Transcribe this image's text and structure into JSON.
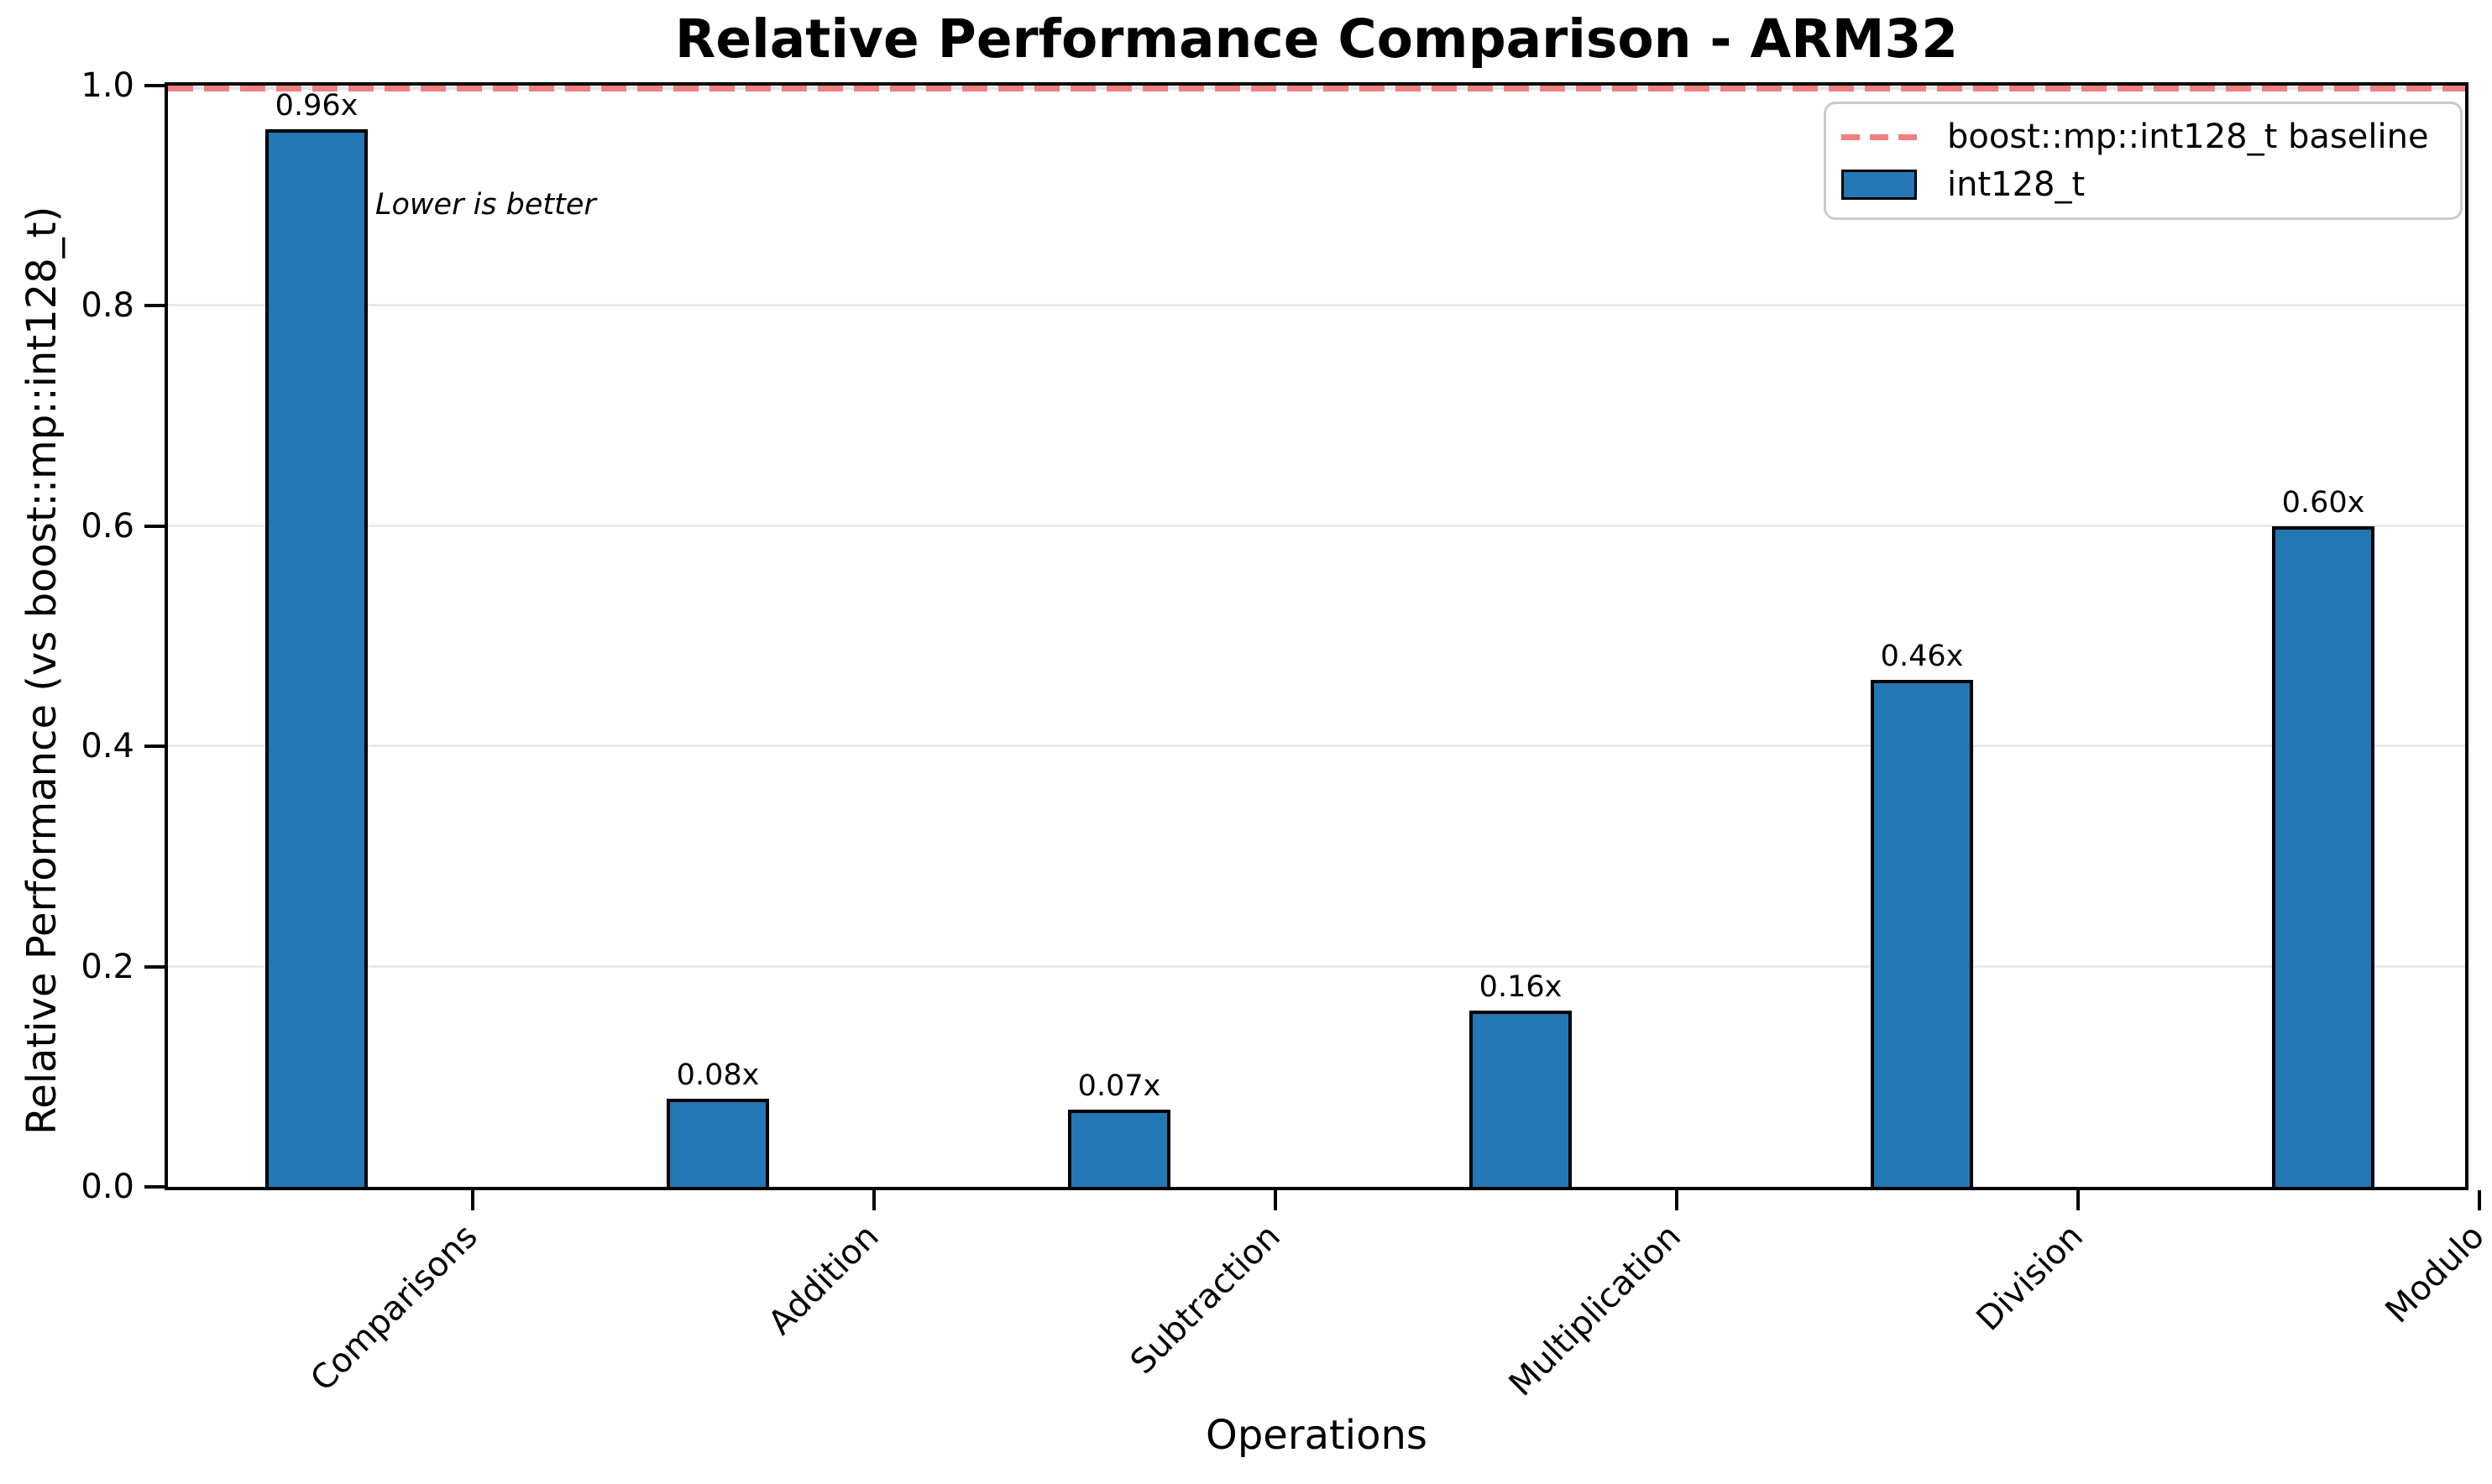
{
  "chart_data": {
    "type": "bar",
    "title": "Relative Performance Comparison - ARM32",
    "xlabel": "Operations",
    "ylabel": "Relative Performance (vs boost::mp::int128_t)",
    "categories": [
      "Comparisons",
      "Addition",
      "Subtraction",
      "Multiplication",
      "Division",
      "Modulo"
    ],
    "series": [
      {
        "name": "int128_t",
        "values": [
          0.96,
          0.08,
          0.07,
          0.16,
          0.46,
          0.6
        ]
      }
    ],
    "bar_labels": [
      "0.96x",
      "0.08x",
      "0.07x",
      "0.16x",
      "0.46x",
      "0.60x"
    ],
    "baseline": {
      "value": 1.0,
      "label": "boost::mp::int128_t baseline",
      "style": "dashed"
    },
    "annotation": "Lower is better",
    "ylim": [
      0.0,
      1.0
    ],
    "ytick_labels": [
      "0.0",
      "0.2",
      "0.4",
      "0.6",
      "0.8",
      "1.0"
    ],
    "yticks": [
      0.0,
      0.2,
      0.4,
      0.6,
      0.8,
      1.0
    ],
    "grid": true,
    "legend_position": "upper right",
    "colors": {
      "bar_fill": "#2277b4",
      "bar_edge": "#000000",
      "baseline_line": "#f08080",
      "gridline": "#e9e9e9"
    }
  }
}
